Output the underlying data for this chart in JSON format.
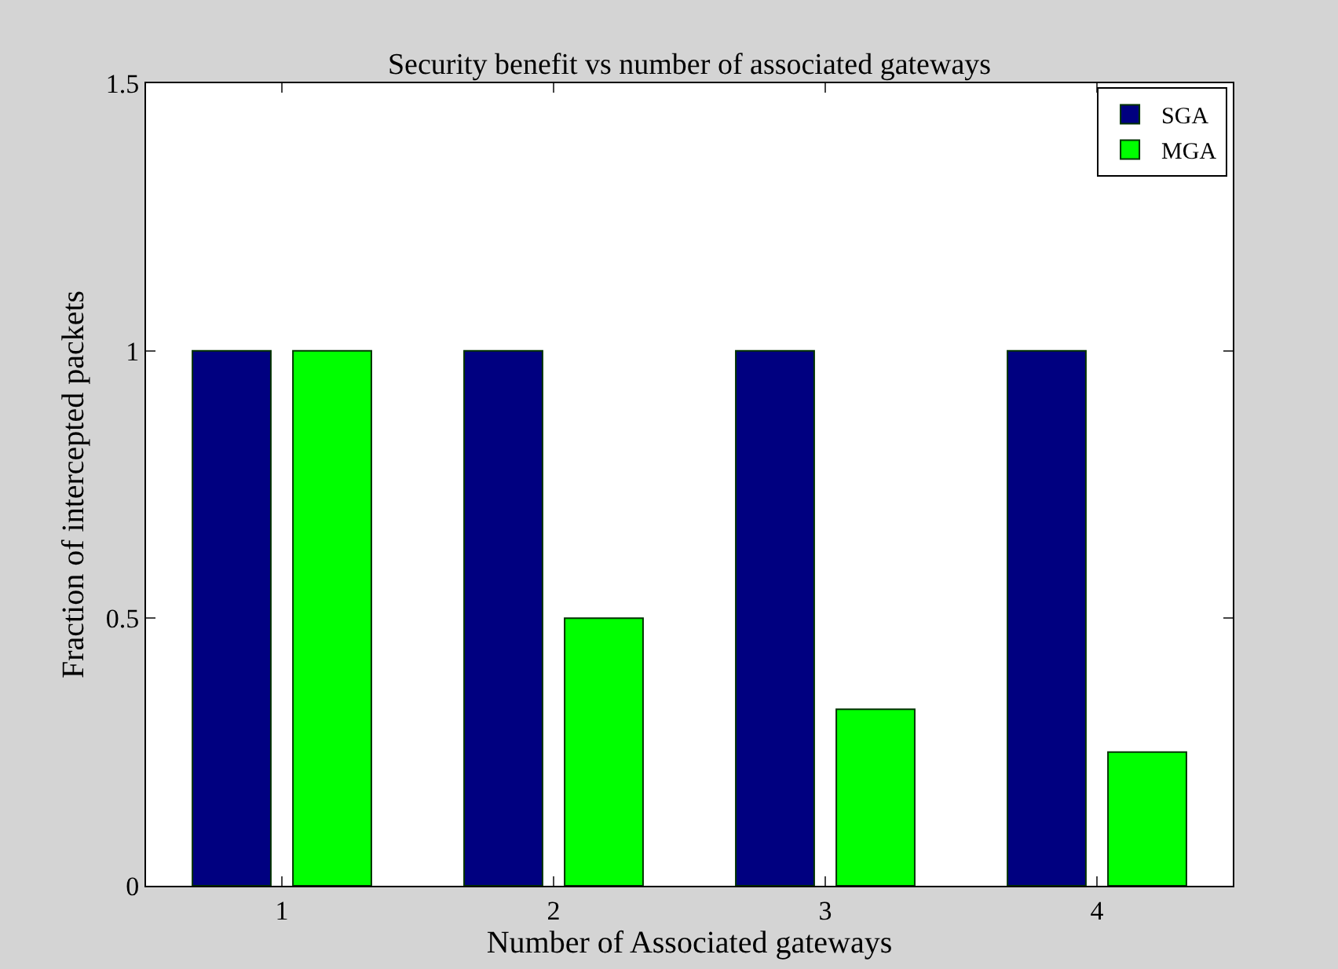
{
  "chart_data": {
    "type": "bar",
    "title": "Security benefit vs number of associated gateways",
    "xlabel": "Number of Associated gateways",
    "ylabel": "Fraction of intercepted packets",
    "categories": [
      "1",
      "2",
      "3",
      "4"
    ],
    "series": [
      {
        "name": "SGA",
        "color": "#000080",
        "values": [
          1,
          1,
          1,
          1
        ]
      },
      {
        "name": "MGA",
        "color": "#00ff00",
        "values": [
          1,
          0.5,
          0.33,
          0.25
        ]
      }
    ],
    "ylim": [
      0,
      1.5
    ],
    "yticks": [
      0,
      0.5,
      1,
      1.5
    ],
    "legend": "top right"
  }
}
